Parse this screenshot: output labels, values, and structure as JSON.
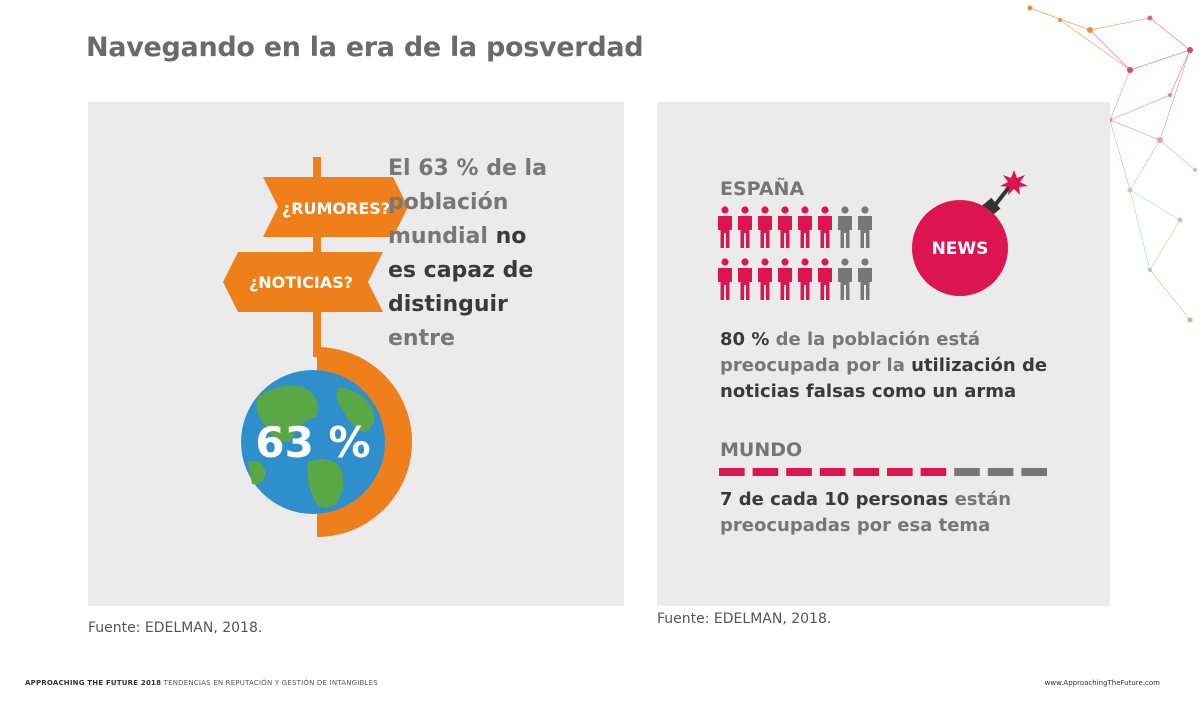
{
  "title": "Navegando en la era de la posverdad",
  "left_panel": {
    "sign_top": "¿RUMORES?",
    "sign_bottom": "¿NOTICIAS?",
    "globe_value": "63 %",
    "text_line1": "El 63 % de la",
    "text_line2": "población",
    "text_line3a": "mundial",
    "text_line3b": "no",
    "text_line4": "es capaz de",
    "text_line5": "distinguir",
    "text_line6": "entre",
    "source": "Fuente: EDELMAN, 2018."
  },
  "right_panel": {
    "spain_label": "ESPAÑA",
    "spain_concerned_fraction": 0.8,
    "news_label": "NEWS",
    "stat1_part1": "80 %",
    "stat1_part2": " de la población está preocupada por la ",
    "stat1_part3": "utilización de noticias falsas como un arma",
    "world_label": "MUNDO",
    "world_concerned": 7,
    "world_total": 10,
    "stat2_part1": "7 de cada 10 personas",
    "stat2_part2": " están preocupadas por esa tema",
    "source": "Fuente: EDELMAN, 2018."
  },
  "footer": {
    "brand": "APPROACHING THE FUTURE 2018",
    "subtitle": " TENDENCIAS EN REPUTACIÓN Y GESTIÓN DE INTANGIBLES",
    "url": "www.ApproachingTheFuture.com"
  },
  "colors": {
    "orange": "#ee7f1b",
    "crimson": "#dc1450",
    "gray": "#777777",
    "panel": "#ebebeb",
    "ocean": "#2f8fcc",
    "land": "#5aa845"
  },
  "icons": {
    "network": "network-decoration-icon",
    "signpost": "signpost-icon",
    "globe": "globe-icon",
    "person": "person-icon",
    "bomb": "bomb-icon"
  }
}
